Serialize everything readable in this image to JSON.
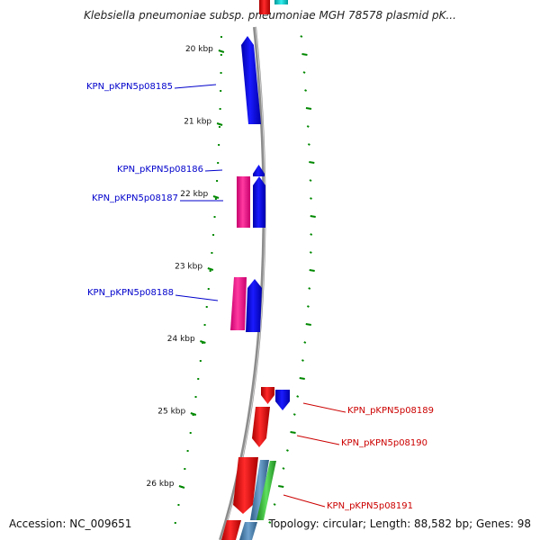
{
  "title": "Klebsiella pneumoniae subsp. pneumoniae MGH 78578 plasmid pK...",
  "footer": {
    "accession": "Accession: NC_009651",
    "summary": "Topology: circular; Length: 88,582 bp; Genes: 98"
  },
  "ruler": {
    "unit": "kbp",
    "ticks": [
      {
        "kbp": 20,
        "label": "20 kbp"
      },
      {
        "kbp": 21,
        "label": "21 kbp"
      },
      {
        "kbp": 22,
        "label": "22 kbp"
      },
      {
        "kbp": 23,
        "label": "23 kbp"
      },
      {
        "kbp": 24,
        "label": "24 kbp"
      },
      {
        "kbp": 25,
        "label": "25 kbp"
      },
      {
        "kbp": 26,
        "label": "26 kbp"
      }
    ]
  },
  "gene_labels": [
    {
      "text": "KPN_pKPN5p08185",
      "color": "#0000cc",
      "side": "left"
    },
    {
      "text": "KPN_pKPN5p08186",
      "color": "#0000cc",
      "side": "left"
    },
    {
      "text": "KPN_pKPN5p08187",
      "color": "#0000cc",
      "side": "left"
    },
    {
      "text": "KPN_pKPN5p08188",
      "color": "#0000cc",
      "side": "left"
    },
    {
      "text": "KPN_pKPN5p08189",
      "color": "#cc0000",
      "side": "right"
    },
    {
      "text": "KPN_pKPN5p08190",
      "color": "#cc0000",
      "side": "right"
    },
    {
      "text": "KPN_pKPN5p08191",
      "color": "#cc0000",
      "side": "right"
    }
  ],
  "colors": {
    "forward_cds": "#0000ee",
    "reverse_cds": "#ee0000",
    "magenta": "#ff1493",
    "green": "#33cc33",
    "steel": "#4682b4",
    "cyan": "#00cccc",
    "backbone": "#9a9a9a",
    "gc_marks": "#008800"
  }
}
